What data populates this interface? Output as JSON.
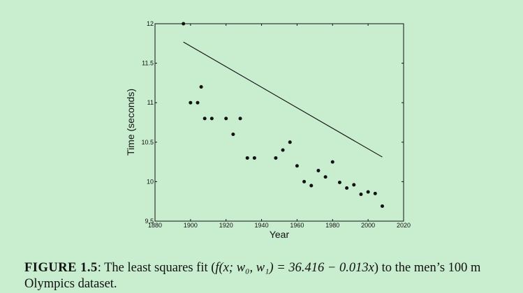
{
  "chart_data": {
    "type": "scatter",
    "xlabel": "Year",
    "ylabel": "Time (seconds)",
    "xlim": [
      1880,
      2020
    ],
    "ylim": [
      9.5,
      12
    ],
    "x_ticks": [
      1880,
      1900,
      1920,
      1940,
      1960,
      1980,
      2000,
      2020
    ],
    "y_ticks": [
      "9.5",
      "10",
      "10.5",
      "11",
      "11.5",
      "12"
    ],
    "grid": false,
    "points": [
      {
        "x": 1896,
        "y": 12.0
      },
      {
        "x": 1900,
        "y": 11.0
      },
      {
        "x": 1904,
        "y": 11.0
      },
      {
        "x": 1906,
        "y": 11.2
      },
      {
        "x": 1908,
        "y": 10.8
      },
      {
        "x": 1912,
        "y": 10.8
      },
      {
        "x": 1920,
        "y": 10.8
      },
      {
        "x": 1924,
        "y": 10.6
      },
      {
        "x": 1928,
        "y": 10.8
      },
      {
        "x": 1932,
        "y": 10.3
      },
      {
        "x": 1936,
        "y": 10.3
      },
      {
        "x": 1948,
        "y": 10.3
      },
      {
        "x": 1952,
        "y": 10.4
      },
      {
        "x": 1956,
        "y": 10.5
      },
      {
        "x": 1960,
        "y": 10.2
      },
      {
        "x": 1964,
        "y": 10.0
      },
      {
        "x": 1968,
        "y": 9.95
      },
      {
        "x": 1972,
        "y": 10.14
      },
      {
        "x": 1976,
        "y": 10.06
      },
      {
        "x": 1980,
        "y": 10.25
      },
      {
        "x": 1984,
        "y": 9.99
      },
      {
        "x": 1988,
        "y": 9.92
      },
      {
        "x": 1992,
        "y": 9.96
      },
      {
        "x": 1996,
        "y": 9.84
      },
      {
        "x": 2000,
        "y": 9.87
      },
      {
        "x": 2004,
        "y": 9.85
      },
      {
        "x": 2008,
        "y": 9.69
      }
    ],
    "fit_line": {
      "intercept": 36.416,
      "slope": -0.013,
      "x_range": [
        1896,
        2008
      ]
    }
  },
  "caption": {
    "label": "FIGURE 1.5",
    "text_before": ": The least squares fit (",
    "math": "f(x; w₀, w₁) = 36.416 − 0.013x",
    "text_after": ") to the men’s 100 m Olympics dataset."
  }
}
